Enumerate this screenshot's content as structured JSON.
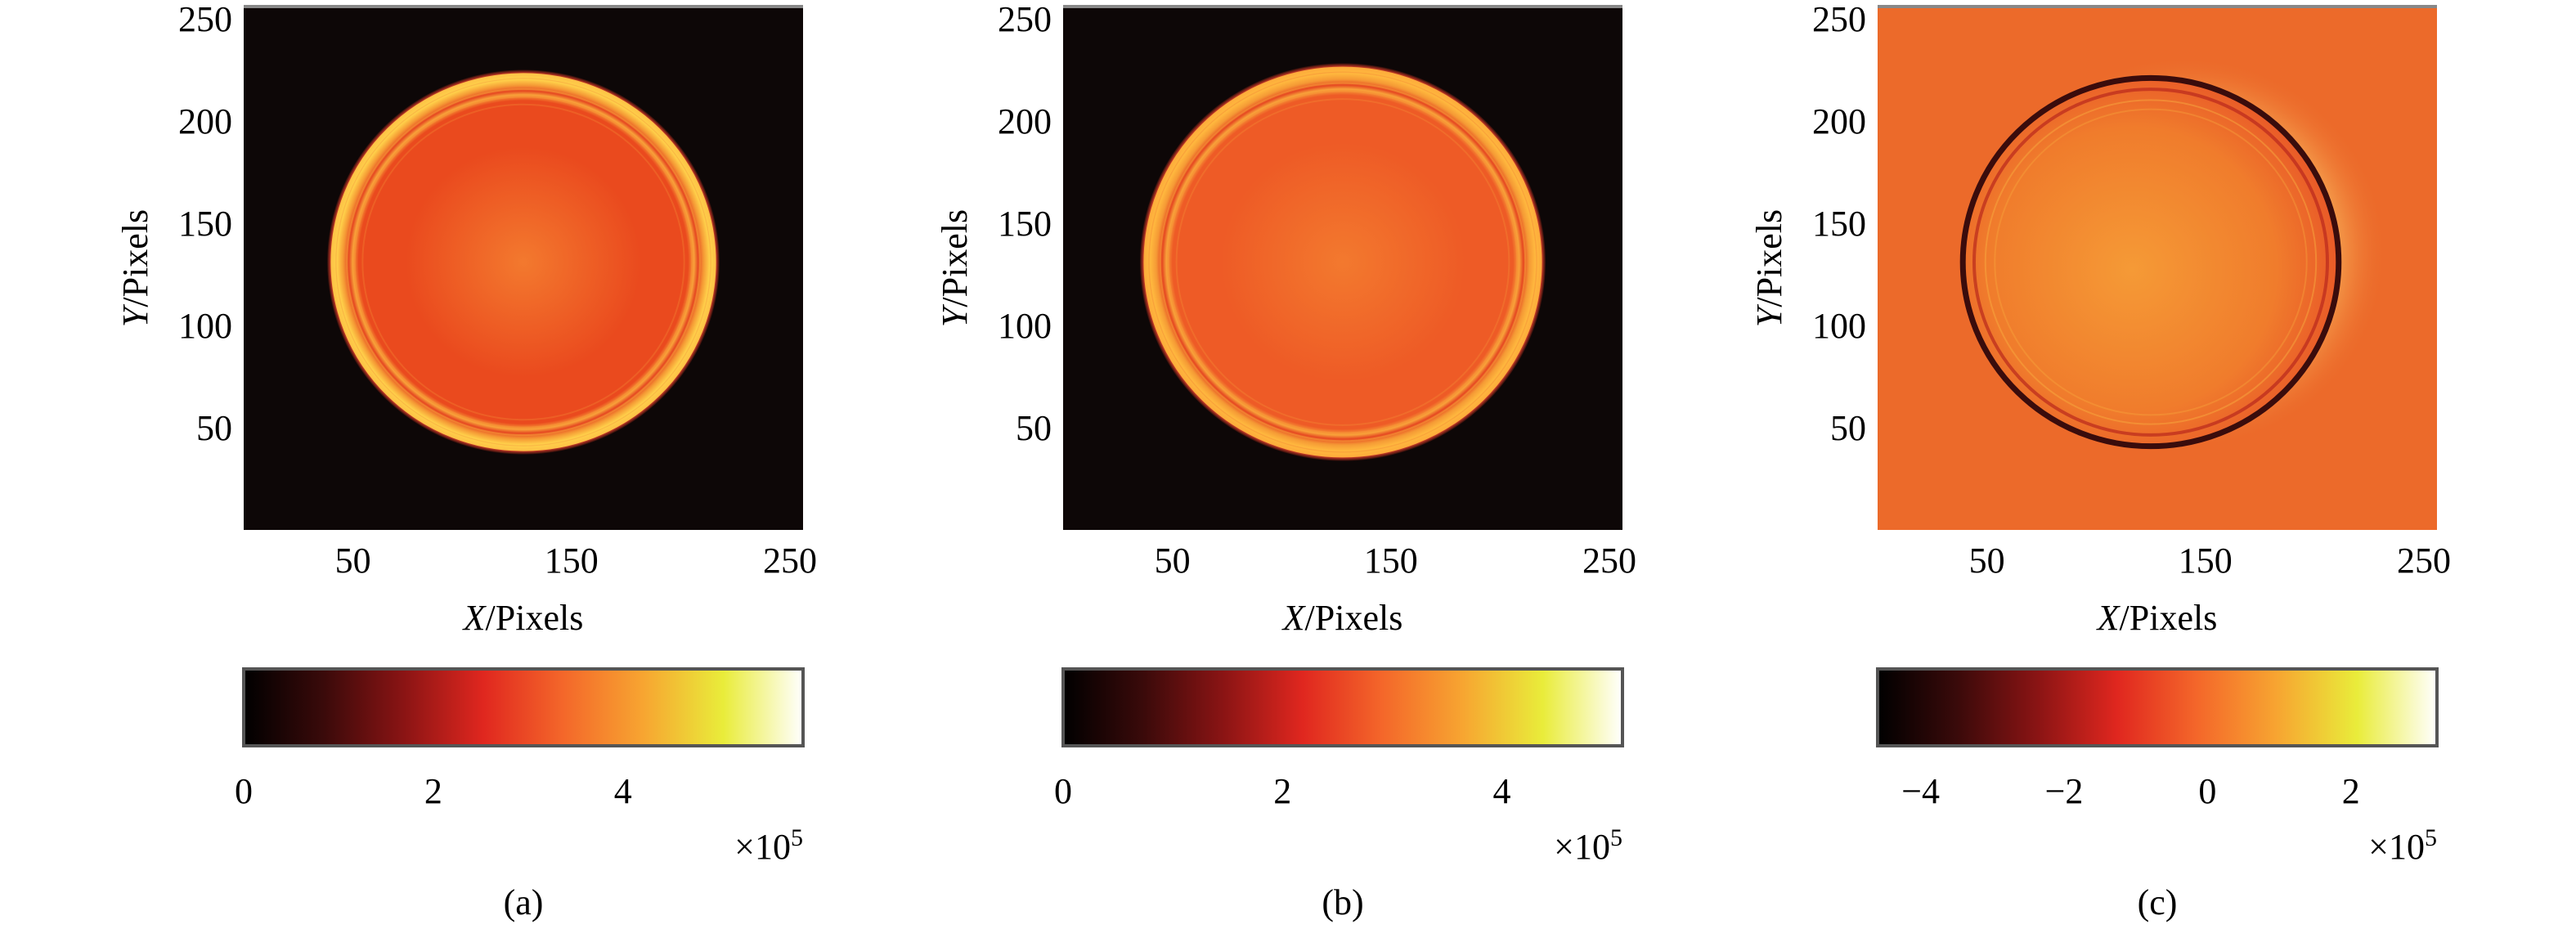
{
  "figure": {
    "panels": [
      {
        "id": "a",
        "caption": "(a)",
        "kind": "reconstruction",
        "bg_color": "#0d0707",
        "ring_outer_color": "#ffd04a",
        "disk_color": "#ea4a1e"
      },
      {
        "id": "b",
        "caption": "(b)",
        "kind": "reconstruction",
        "bg_color": "#0d0707",
        "ring_outer_color": "#ffb83e",
        "disk_color": "#ee5b26"
      },
      {
        "id": "c",
        "caption": "(c)",
        "kind": "difference",
        "bg_color": "#ec6a2a",
        "ring_outer_color": "#fff48c",
        "disk_color": "#f07c2c"
      }
    ],
    "colormap": [
      "#000000",
      "#3a0a0a",
      "#8a1414",
      "#e0271f",
      "#f4672a",
      "#f7a531",
      "#e9ec3a",
      "#ffffff"
    ]
  },
  "chart_data": [
    {
      "type": "heatmap",
      "panel": "(a)",
      "xlabel_italic": "X",
      "xlabel_rest": "/Pixels",
      "ylabel_italic": "Y",
      "ylabel_rest": "/Pixels",
      "xlim": [
        0,
        256
      ],
      "ylim": [
        0,
        256
      ],
      "xticks": [
        50,
        150,
        250
      ],
      "yticks": [
        50,
        100,
        150,
        200,
        250
      ],
      "colorbar": {
        "min": 0,
        "max": 5.9,
        "ticks": [
          "0",
          "2",
          "4"
        ],
        "tick_values": [
          0,
          2,
          4
        ],
        "multiplier_base": "×10",
        "multiplier_exp": "5"
      },
      "features": {
        "disk_center": [
          128,
          131
        ],
        "disk_radius": 88,
        "ring_value_e5": 4.8,
        "interior_value_e5": 2.6,
        "background_value_e5": 0
      }
    },
    {
      "type": "heatmap",
      "panel": "(b)",
      "xlabel_italic": "X",
      "xlabel_rest": "/Pixels",
      "ylabel_italic": "Y",
      "ylabel_rest": "/Pixels",
      "xlim": [
        0,
        256
      ],
      "ylim": [
        0,
        256
      ],
      "xticks": [
        50,
        150,
        250
      ],
      "yticks": [
        50,
        100,
        150,
        200,
        250
      ],
      "colorbar": {
        "min": 0,
        "max": 5.1,
        "ticks": [
          "0",
          "2",
          "4"
        ],
        "tick_values": [
          0,
          2,
          4
        ],
        "multiplier_base": "×10",
        "multiplier_exp": "5"
      },
      "features": {
        "disk_center": [
          128,
          131
        ],
        "disk_radius": 91,
        "ring_value_e5": 3.6,
        "interior_value_e5": 2.6,
        "background_value_e5": 0
      }
    },
    {
      "type": "heatmap",
      "panel": "(c)",
      "xlabel_italic": "X",
      "xlabel_rest": "/Pixels",
      "ylabel_italic": "Y",
      "ylabel_rest": "/Pixels",
      "xlim": [
        0,
        256
      ],
      "ylim": [
        0,
        256
      ],
      "xticks": [
        50,
        150,
        250
      ],
      "yticks": [
        50,
        100,
        150,
        200,
        250
      ],
      "colorbar": {
        "min": -4.6,
        "max": 3.2,
        "ticks": [
          "−4",
          "−2",
          "0",
          "2"
        ],
        "tick_values": [
          -4,
          -2,
          0,
          2
        ],
        "multiplier_base": "×10",
        "multiplier_exp": "5"
      },
      "features": {
        "disk_center": [
          125,
          131
        ],
        "disk_radius": 86,
        "ring_value_e5": -4.0,
        "crescent_value_e5": 3.0,
        "interior_value_e5": 0.5,
        "background_value_e5": 0
      }
    }
  ]
}
